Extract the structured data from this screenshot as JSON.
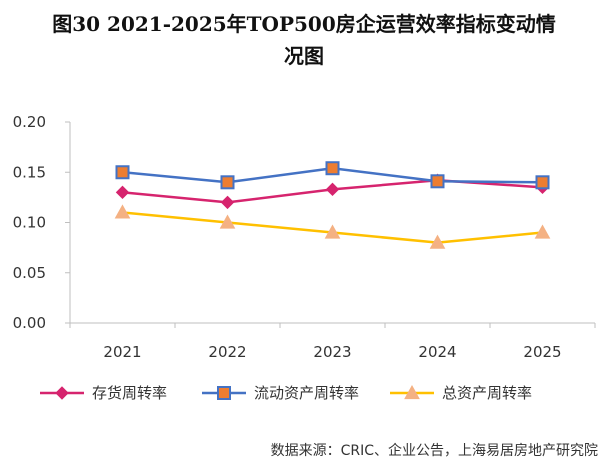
{
  "title_line1": "图30   2021-2025年TOP500房企运营效率指标变动情",
  "title_line2": "况图",
  "source": "数据来源：CRIC、企业公告，上海易居房地产研究院",
  "chart_data": {
    "type": "line",
    "categories": [
      "2021",
      "2022",
      "2023",
      "2024",
      "2025"
    ],
    "ylim": [
      0,
      0.2
    ],
    "yticks": [
      "0.00",
      "0.05",
      "0.10",
      "0.15",
      "0.20"
    ],
    "grid": false,
    "legend": "bottom",
    "series": [
      {
        "name": "存货周转率",
        "values": [
          0.13,
          0.12,
          0.133,
          0.142,
          0.135
        ],
        "color": "#d6246e",
        "marker": "diamond"
      },
      {
        "name": "流动资产周转率",
        "values": [
          0.15,
          0.14,
          0.154,
          0.141,
          0.14
        ],
        "color": "#4472c4",
        "marker": "square",
        "marker_fill": "#ed7d31"
      },
      {
        "name": "总资产周转率",
        "values": [
          0.11,
          0.1,
          0.09,
          0.08,
          0.09
        ],
        "color": "#ffc000",
        "marker": "triangle",
        "marker_fill": "#f4b183"
      }
    ]
  }
}
